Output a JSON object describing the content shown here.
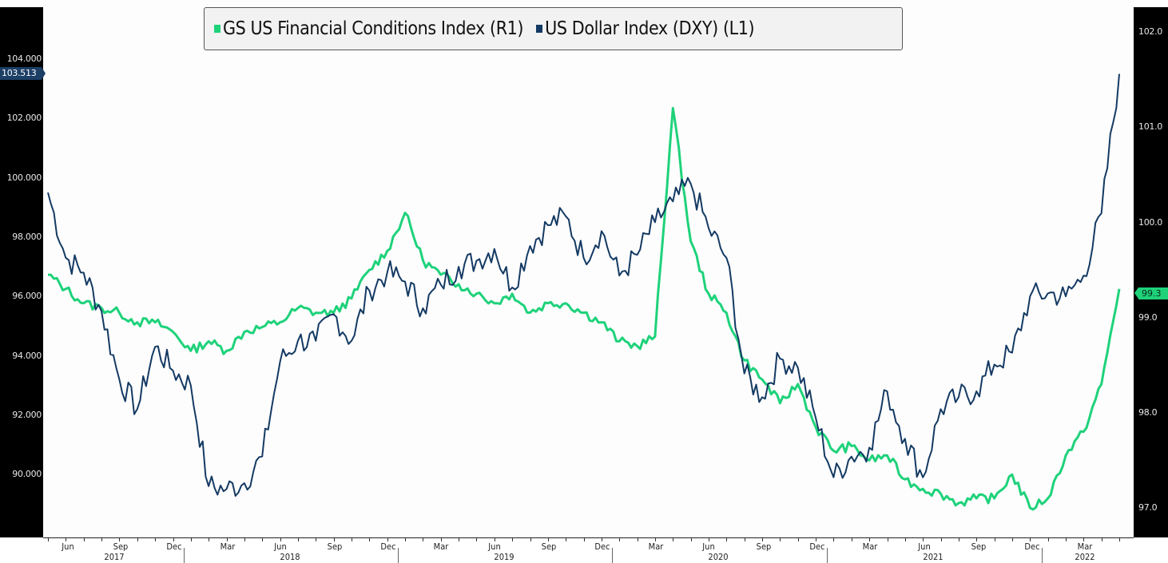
{
  "chart_data": {
    "type": "line",
    "title": "",
    "legend": [
      {
        "name": "GS US Financial Conditions Index (R1)",
        "color": "#1ed27a",
        "axis": "right"
      },
      {
        "name": "US Dollar Index (DXY) (L1)",
        "color": "#143a63",
        "axis": "left"
      }
    ],
    "legend_position": "top-center",
    "grid": false,
    "xlabel": "",
    "x_ticks": [
      "Jun",
      "Sep",
      "Dec",
      "Mar",
      "Jun",
      "Sep",
      "Dec",
      "Mar",
      "Jun",
      "Sep",
      "Dec",
      "Mar",
      "Jun",
      "Sep",
      "Dec",
      "Mar",
      "Jun",
      "Sep",
      "Dec",
      "Mar"
    ],
    "x_years": [
      "2017",
      "2018",
      "2019",
      "2020",
      "2021",
      "2022"
    ],
    "left_axis": {
      "label": "US Dollar Index (DXY)",
      "ticks": [
        "104.000",
        "102.000",
        "100.000",
        "98.000",
        "96.000",
        "94.000",
        "92.000",
        "90.000"
      ],
      "ylim": [
        87.9,
        106.0
      ],
      "last_value": "103.513"
    },
    "right_axis": {
      "label": "GS US Financial Conditions Index",
      "ticks": [
        "102.0",
        "101.0",
        "100.0",
        "99.0",
        "98.0",
        "97.0"
      ],
      "ylim": [
        96.7,
        102.3
      ],
      "last_value": "99.3"
    },
    "x": [
      "2017-04",
      "2017-05",
      "2017-06",
      "2017-07",
      "2017-08",
      "2017-09",
      "2017-10",
      "2017-11",
      "2017-12",
      "2018-01",
      "2018-02",
      "2018-03",
      "2018-04",
      "2018-05",
      "2018-06",
      "2018-07",
      "2018-08",
      "2018-09",
      "2018-10",
      "2018-11",
      "2018-12",
      "2019-01",
      "2019-02",
      "2019-03",
      "2019-04",
      "2019-05",
      "2019-06",
      "2019-07",
      "2019-08",
      "2019-09",
      "2019-10",
      "2019-11",
      "2019-12",
      "2020-01",
      "2020-02",
      "2020-03",
      "2020-04",
      "2020-05",
      "2020-06",
      "2020-07",
      "2020-08",
      "2020-09",
      "2020-10",
      "2020-11",
      "2020-12",
      "2021-01",
      "2021-02",
      "2021-03",
      "2021-04",
      "2021-05",
      "2021-06",
      "2021-07",
      "2021-08",
      "2021-09",
      "2021-10",
      "2021-11",
      "2021-12",
      "2022-01",
      "2022-02",
      "2022-03",
      "2022-04"
    ],
    "series": [
      {
        "name": "US Dollar Index (DXY) (L1)",
        "axis": "left",
        "values": [
          99.5,
          97.3,
          96.8,
          95.5,
          93.2,
          92.2,
          94.3,
          93.5,
          93.0,
          89.6,
          89.5,
          89.7,
          90.6,
          93.8,
          94.5,
          94.5,
          95.4,
          94.5,
          96.2,
          96.8,
          96.5,
          95.6,
          96.4,
          97.0,
          97.2,
          97.6,
          96.3,
          97.7,
          98.4,
          98.7,
          97.3,
          98.2,
          96.7,
          97.4,
          98.5,
          99.2,
          99.8,
          98.3,
          97.3,
          93.4,
          92.6,
          93.9,
          93.6,
          91.9,
          89.9,
          90.6,
          90.9,
          92.8,
          91.2,
          89.9,
          92.2,
          92.6,
          92.8,
          93.7,
          94.1,
          96.0,
          96.1,
          96.0,
          96.7,
          98.8,
          103.5
        ]
      },
      {
        "name": "GS US Financial Conditions Index (R1)",
        "axis": "right",
        "values": [
          99.45,
          99.3,
          99.15,
          99.1,
          99.05,
          98.95,
          98.95,
          98.85,
          98.65,
          98.75,
          98.65,
          98.85,
          98.9,
          98.95,
          99.1,
          99.05,
          99.05,
          99.2,
          99.5,
          99.7,
          100.1,
          99.6,
          99.45,
          99.35,
          99.25,
          99.15,
          99.25,
          99.05,
          99.15,
          99.15,
          99.05,
          98.95,
          98.75,
          98.7,
          98.8,
          101.2,
          99.8,
          99.25,
          99.05,
          98.55,
          98.35,
          98.1,
          98.3,
          97.85,
          97.6,
          97.65,
          97.5,
          97.55,
          97.3,
          97.2,
          97.15,
          97.05,
          97.1,
          97.1,
          97.35,
          97.0,
          97.1,
          97.55,
          97.8,
          98.3,
          99.3
        ]
      }
    ]
  }
}
